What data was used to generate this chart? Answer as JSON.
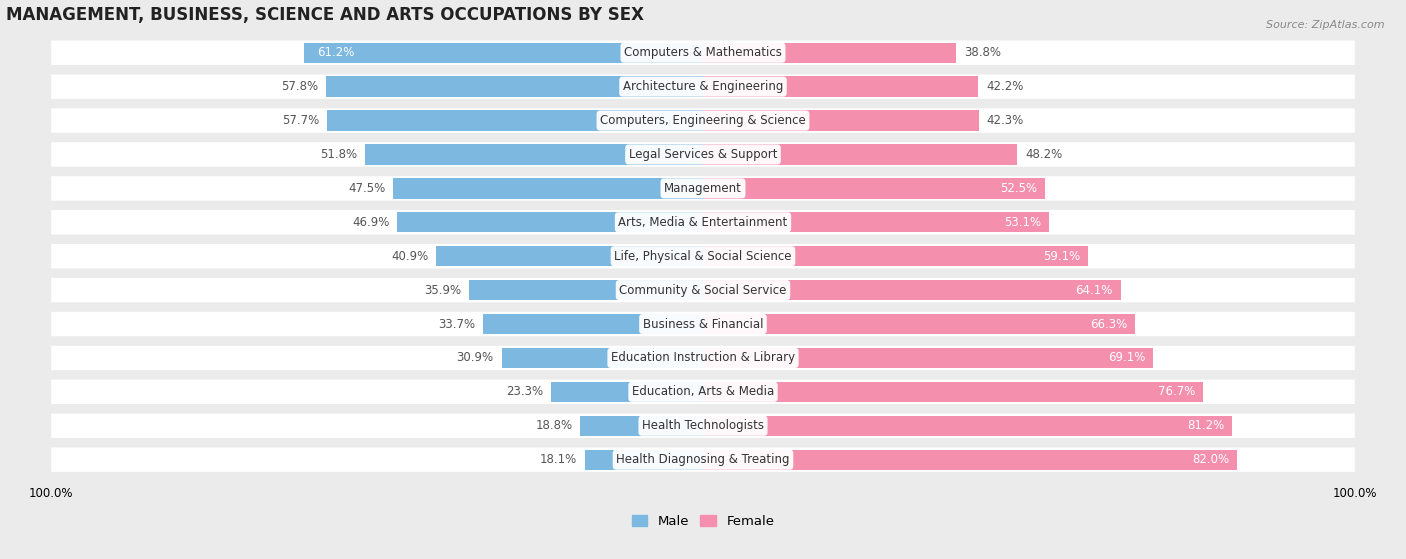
{
  "title": "MANAGEMENT, BUSINESS, SCIENCE AND ARTS OCCUPATIONS BY SEX",
  "source": "Source: ZipAtlas.com",
  "categories": [
    "Computers & Mathematics",
    "Architecture & Engineering",
    "Computers, Engineering & Science",
    "Legal Services & Support",
    "Management",
    "Arts, Media & Entertainment",
    "Life, Physical & Social Science",
    "Community & Social Service",
    "Business & Financial",
    "Education Instruction & Library",
    "Education, Arts & Media",
    "Health Technologists",
    "Health Diagnosing & Treating"
  ],
  "male_pct": [
    61.2,
    57.8,
    57.7,
    51.8,
    47.5,
    46.9,
    40.9,
    35.9,
    33.7,
    30.9,
    23.3,
    18.8,
    18.1
  ],
  "female_pct": [
    38.8,
    42.2,
    42.3,
    48.2,
    52.5,
    53.1,
    59.1,
    64.1,
    66.3,
    69.1,
    76.7,
    81.2,
    82.0
  ],
  "male_color": "#7db8e0",
  "female_color": "#f48fad",
  "bg_color": "#ebebeb",
  "bar_bg": "#ffffff",
  "row_sep_color": "#d8d8d8",
  "label_fontsize": 8.5,
  "title_fontsize": 12,
  "legend_fontsize": 9.5,
  "male_label_inside_threshold": 61.2,
  "female_label_inside_threshold": 52.0
}
